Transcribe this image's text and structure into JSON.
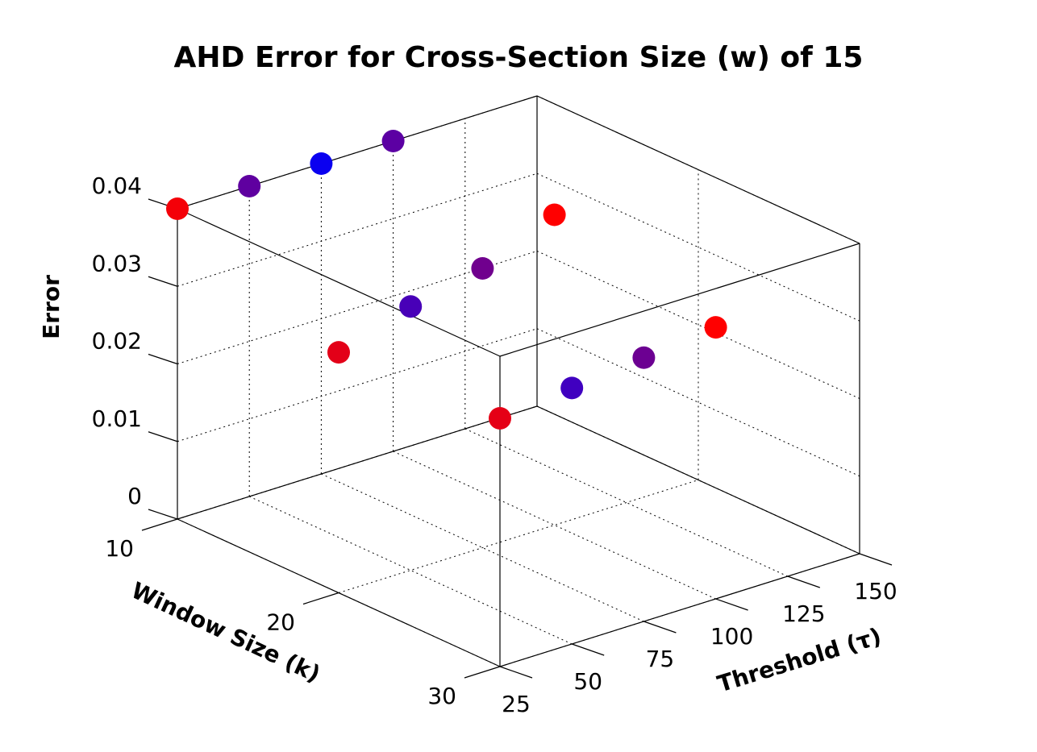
{
  "chart_data": {
    "type": "scatter",
    "title": "AHD Error for Cross-Section Size (w) of 15",
    "xlabel": "Threshold (τ)",
    "ylabel": "Window Size (k)",
    "zlabel": "Error",
    "x_ticks": [
      "25",
      "50",
      "75",
      "100",
      "125",
      "150"
    ],
    "y_ticks": [
      "10",
      "20",
      "30"
    ],
    "z_ticks": [
      "0",
      "0.01",
      "0.02",
      "0.03",
      "0.04"
    ],
    "xlim": [
      25,
      150
    ],
    "ylim": [
      10,
      30
    ],
    "zlim": [
      0,
      0.04
    ],
    "grid": true,
    "points": [
      {
        "threshold": 25,
        "window": 10,
        "error": 0.04,
        "color": "#f40008"
      },
      {
        "threshold": 50,
        "window": 10,
        "error": 0.04,
        "color": "#5f00a0"
      },
      {
        "threshold": 75,
        "window": 10,
        "error": 0.04,
        "color": "#0a00f0"
      },
      {
        "threshold": 100,
        "window": 10,
        "error": 0.04,
        "color": "#5c00a3"
      },
      {
        "threshold": 25,
        "window": 20,
        "error": 0.031,
        "color": "#e30018"
      },
      {
        "threshold": 50,
        "window": 20,
        "error": 0.034,
        "color": "#4800b8"
      },
      {
        "threshold": 75,
        "window": 20,
        "error": 0.036,
        "color": "#70008e"
      },
      {
        "threshold": 100,
        "window": 20,
        "error": 0.04,
        "color": "#ff0000"
      },
      {
        "threshold": 25,
        "window": 30,
        "error": 0.032,
        "color": "#e50016"
      },
      {
        "threshold": 50,
        "window": 30,
        "error": 0.033,
        "color": "#4000c0"
      },
      {
        "threshold": 75,
        "window": 30,
        "error": 0.034,
        "color": "#6c0092"
      },
      {
        "threshold": 100,
        "window": 30,
        "error": 0.035,
        "color": "#ff0000"
      }
    ]
  }
}
